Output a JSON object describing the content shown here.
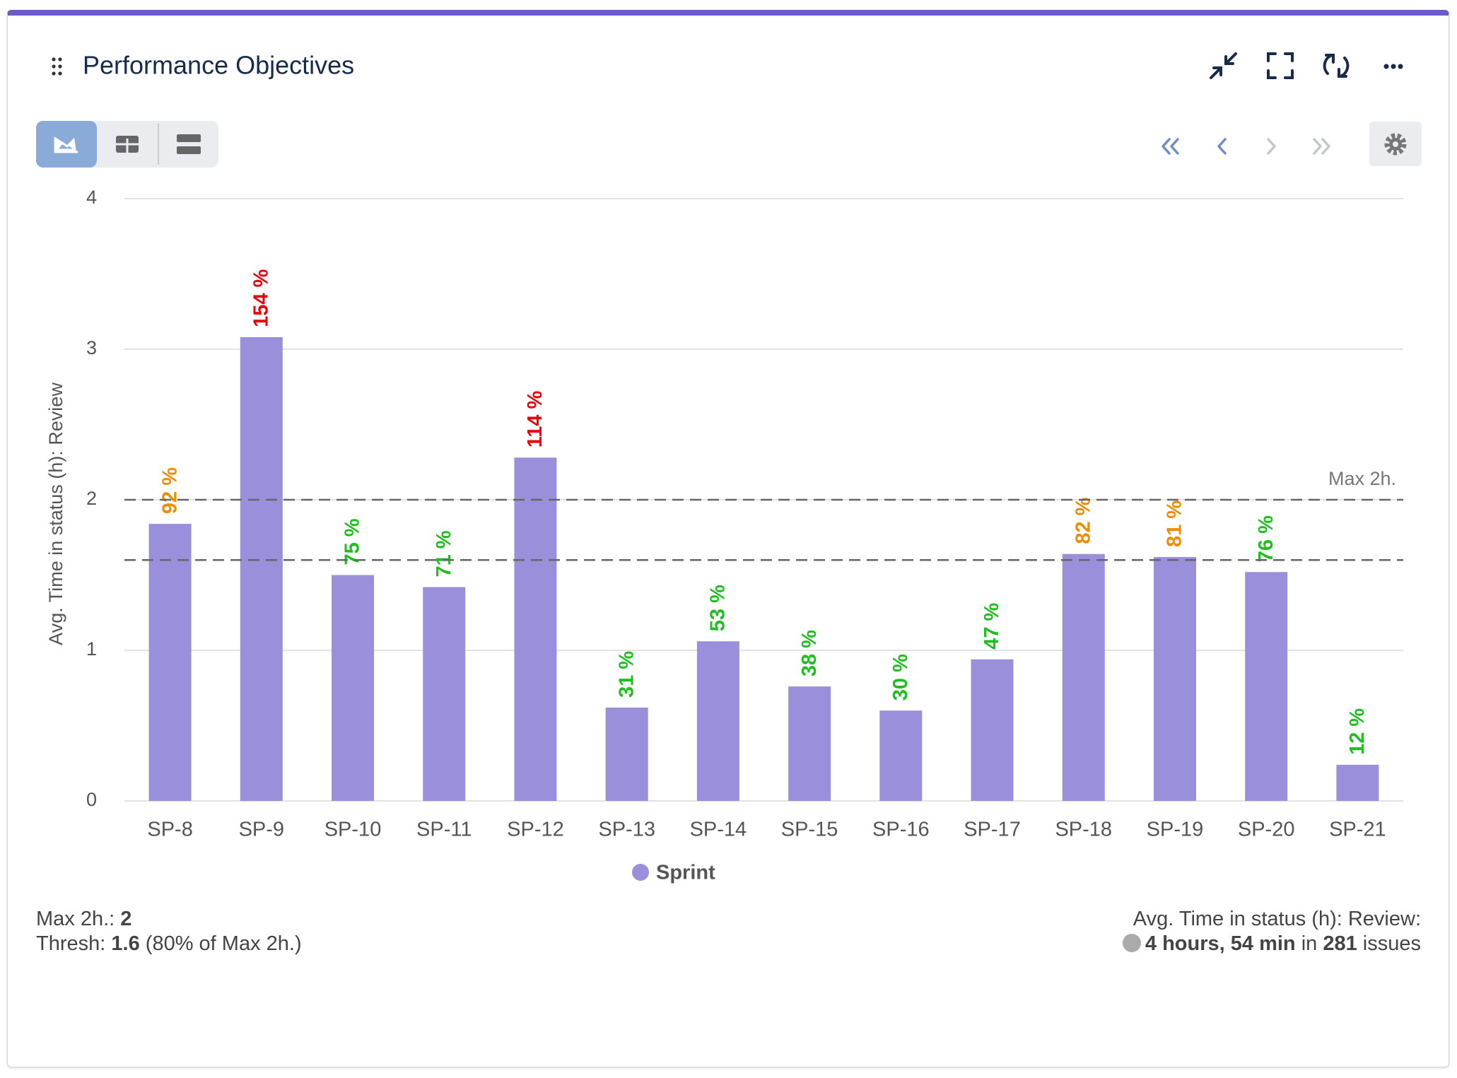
{
  "header": {
    "title": "Performance Objectives"
  },
  "chart_data": {
    "type": "bar",
    "y_label": "Avg. Time in status (h): Review",
    "categories": [
      "SP-8",
      "SP-9",
      "SP-10",
      "SP-11",
      "SP-12",
      "SP-13",
      "SP-14",
      "SP-15",
      "SP-16",
      "SP-17",
      "SP-18",
      "SP-19",
      "SP-20",
      "SP-21"
    ],
    "series": [
      {
        "name": "Sprint",
        "color": "#9a8fda",
        "values": [
          1.84,
          3.08,
          1.5,
          1.42,
          2.28,
          0.62,
          1.06,
          0.76,
          0.6,
          0.94,
          1.64,
          1.62,
          1.52,
          0.24
        ],
        "value_labels": [
          "92 %",
          "154 %",
          "75 %",
          "71 %",
          "114 %",
          "31 %",
          "53 %",
          "38 %",
          "30 %",
          "47 %",
          "82 %",
          "81 %",
          "76 %",
          "12 %"
        ]
      }
    ],
    "ylim": [
      0,
      4
    ],
    "yticks": [
      0,
      1,
      2,
      3,
      4
    ],
    "grid": true,
    "reference_lines": [
      {
        "value": 2,
        "label": "Max 2h."
      },
      {
        "value": 1.6
      }
    ],
    "label_colors": {
      "over": "#e8000b",
      "warn": "#f08c00",
      "ok": "#1fbf1f"
    },
    "legend": "bottom"
  },
  "footer": {
    "max_label": "Max 2h.:",
    "max_value": "2",
    "thresh_label": "Thresh:",
    "thresh_value": "1.6",
    "thresh_note": "(80% of Max 2h.)",
    "summary_label": "Avg. Time in status (h): Review:",
    "summary_time": "4 hours, 54 min",
    "summary_in": "in",
    "summary_count": "281",
    "summary_unit": "issues"
  }
}
